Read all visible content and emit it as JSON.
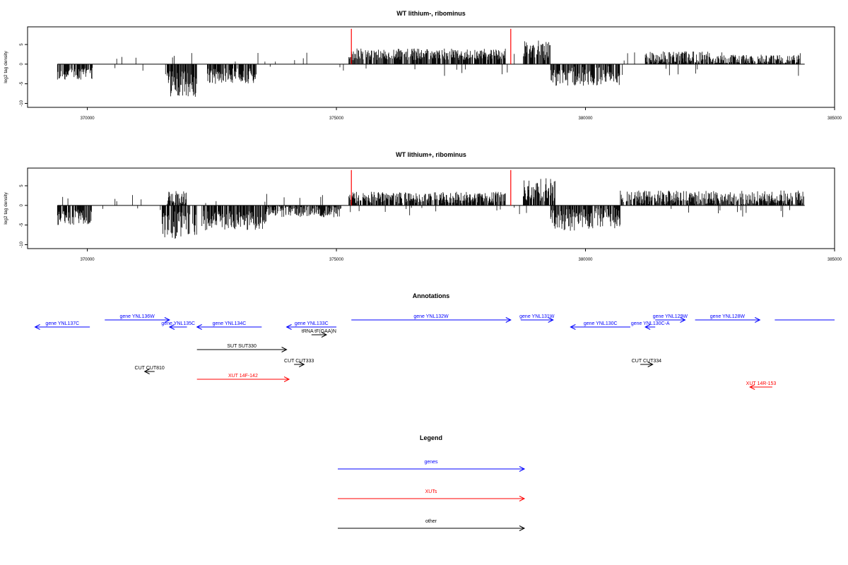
{
  "chart_data": [
    {
      "type": "bar",
      "title": "WT lithium-, ribominus",
      "ylabel": "log2 tag density",
      "xlim": [
        368800,
        385000
      ],
      "ylim": [
        -11,
        9.5
      ],
      "xticks": [
        370000,
        375000,
        380000,
        385000
      ],
      "xtick_labels": [
        "370000",
        "375000",
        "380000",
        "385000"
      ],
      "yticks": [
        -10,
        -5,
        0,
        5
      ],
      "ytick_labels": [
        "-10",
        "-5",
        "0",
        "5"
      ],
      "baseline_range": [
        369400,
        384400
      ],
      "red_markers": [
        {
          "x": 375300,
          "y": 9
        },
        {
          "x": 378500,
          "y": 9
        }
      ],
      "density_segments": [
        {
          "start": 369400,
          "end": 370100,
          "sign": -1,
          "mean": 2.5,
          "spread": 1.5
        },
        {
          "start": 371600,
          "end": 372200,
          "sign": -1,
          "mean": 5,
          "spread": 3.5
        },
        {
          "start": 372400,
          "end": 373400,
          "sign": -1,
          "mean": 3,
          "spread": 2
        },
        {
          "start": 375250,
          "end": 378400,
          "sign": 1,
          "mean": 2.5,
          "spread": 1.5
        },
        {
          "start": 378750,
          "end": 379300,
          "sign": 1,
          "mean": 3.5,
          "spread": 2.5
        },
        {
          "start": 379300,
          "end": 380700,
          "sign": -1,
          "mean": 3,
          "spread": 2.5
        },
        {
          "start": 381200,
          "end": 382500,
          "sign": 1,
          "mean": 1.8,
          "spread": 1.5
        },
        {
          "start": 382500,
          "end": 384300,
          "sign": 1,
          "mean": 1.2,
          "spread": 1.2
        }
      ]
    },
    {
      "type": "bar",
      "title": "WT lithium+, ribominus",
      "ylabel": "log2 tag density",
      "xlim": [
        368800,
        385000
      ],
      "ylim": [
        -11,
        9.5
      ],
      "xticks": [
        370000,
        375000,
        380000,
        385000
      ],
      "xtick_labels": [
        "370000",
        "375000",
        "380000",
        "385000"
      ],
      "yticks": [
        -10,
        -5,
        0,
        5
      ],
      "ytick_labels": [
        "-10",
        "-5",
        "0",
        "5"
      ],
      "baseline_range": [
        369400,
        384400
      ],
      "red_markers": [
        {
          "x": 375300,
          "y": 9
        },
        {
          "x": 378500,
          "y": 9
        }
      ],
      "density_segments": [
        {
          "start": 369400,
          "end": 370100,
          "sign": -1,
          "mean": 3,
          "spread": 2
        },
        {
          "start": 371500,
          "end": 372200,
          "sign": -1,
          "mean": 5,
          "spread": 3.5
        },
        {
          "start": 371600,
          "end": 372000,
          "sign": 1,
          "mean": 2,
          "spread": 2
        },
        {
          "start": 372300,
          "end": 373600,
          "sign": -1,
          "mean": 4,
          "spread": 2.5
        },
        {
          "start": 373600,
          "end": 375100,
          "sign": -1,
          "mean": 1.5,
          "spread": 1.5
        },
        {
          "start": 375250,
          "end": 378400,
          "sign": 1,
          "mean": 2,
          "spread": 1.5
        },
        {
          "start": 378750,
          "end": 379400,
          "sign": 1,
          "mean": 4,
          "spread": 3
        },
        {
          "start": 379300,
          "end": 380700,
          "sign": -1,
          "mean": 3.5,
          "spread": 3
        },
        {
          "start": 380700,
          "end": 384400,
          "sign": 1,
          "mean": 2,
          "spread": 1.8
        }
      ]
    }
  ],
  "annotations": {
    "title": "Annotations",
    "xlim": [
      368800,
      385000
    ],
    "features": [
      {
        "label": "gene YNL137C",
        "start": 368950,
        "end": 370050,
        "strand": "-",
        "category": "genes",
        "row": 2
      },
      {
        "label": "gene YNL136W",
        "start": 370350,
        "end": 371650,
        "strand": "+",
        "category": "genes",
        "row": 1
      },
      {
        "label": "gene YNL135C",
        "start": 371650,
        "end": 372000,
        "strand": "-",
        "category": "genes",
        "row": 2
      },
      {
        "label": "gene YNL134C",
        "start": 372200,
        "end": 373500,
        "strand": "-",
        "category": "genes",
        "row": 2
      },
      {
        "label": "gene YNL133C",
        "start": 374000,
        "end": 375000,
        "strand": "-",
        "category": "genes",
        "row": 2
      },
      {
        "label": "tRNA tF(GAA)N",
        "start": 374500,
        "end": 374800,
        "strand": "+",
        "category": "other",
        "row": 3
      },
      {
        "label": "gene YNL132W",
        "start": 375300,
        "end": 378500,
        "strand": "+",
        "category": "genes",
        "row": 1
      },
      {
        "label": "gene YNL131W",
        "start": 378700,
        "end": 379350,
        "strand": "+",
        "category": "genes",
        "row": 1
      },
      {
        "label": "gene YNL130C",
        "start": 379700,
        "end": 380900,
        "strand": "-",
        "category": "genes",
        "row": 2
      },
      {
        "label": "gene YNL130C-A",
        "start": 381200,
        "end": 381400,
        "strand": "-",
        "category": "genes",
        "row": 2
      },
      {
        "label": "gene YNL129W",
        "start": 381400,
        "end": 382000,
        "strand": "+",
        "category": "genes",
        "row": 1
      },
      {
        "label": "gene YNL128W",
        "start": 382200,
        "end": 383500,
        "strand": "+",
        "category": "genes",
        "row": 1
      },
      {
        "label": "",
        "start": 383800,
        "end": 385000,
        "strand": "none",
        "category": "genes",
        "row": 1
      },
      {
        "label": "SUT SUT330",
        "start": 372200,
        "end": 374000,
        "strand": "+",
        "category": "other",
        "row": 4
      },
      {
        "label": "CUT CUT810",
        "start": 371150,
        "end": 371350,
        "strand": "-",
        "category": "other",
        "row": 6
      },
      {
        "label": "CUT CUT333",
        "start": 374150,
        "end": 374350,
        "strand": "+",
        "category": "other",
        "row": 5
      },
      {
        "label": "CUT CUT334",
        "start": 381100,
        "end": 381350,
        "strand": "+",
        "category": "other",
        "row": 5
      },
      {
        "label": "XUT 14F-142",
        "start": 372200,
        "end": 374050,
        "strand": "+",
        "category": "XUTs",
        "row": 7
      },
      {
        "label": "XUT 14R-153",
        "start": 383300,
        "end": 383750,
        "strand": "-",
        "category": "XUTs",
        "row": 8
      }
    ]
  },
  "legend": {
    "title": "Legend",
    "items": [
      {
        "label": "genes",
        "category": "genes"
      },
      {
        "label": "XUTs",
        "category": "XUTs"
      },
      {
        "label": "other",
        "category": "other"
      }
    ]
  },
  "colors": {
    "genes": "#0000ff",
    "XUTs": "#ff0000",
    "other": "#000000",
    "density": "#000000",
    "marker": "#ff0000"
  }
}
